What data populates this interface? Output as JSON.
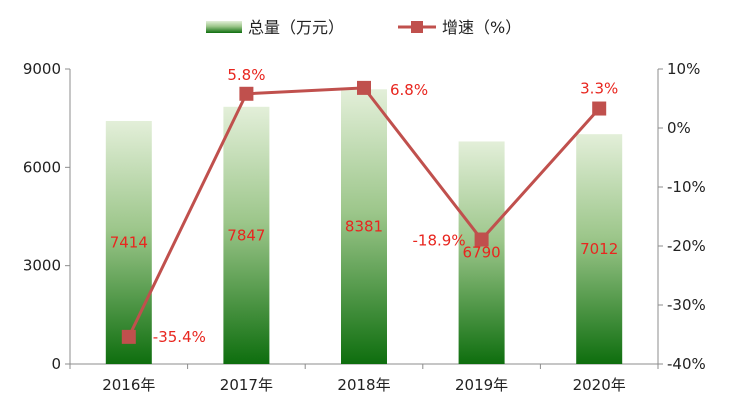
{
  "chart_data": {
    "type": "bar+line",
    "categories": [
      "2016年",
      "2017年",
      "2018年",
      "2019年",
      "2020年"
    ],
    "series": [
      {
        "name": "总量（万元）",
        "type": "bar",
        "axis": "left",
        "values": [
          7414,
          7847,
          8381,
          6790,
          7012
        ],
        "labels": [
          "7414",
          "7847",
          "8381",
          "6790",
          "7012"
        ]
      },
      {
        "name": "增速（%）",
        "type": "line",
        "axis": "right",
        "values": [
          -35.4,
          5.8,
          6.8,
          -18.9,
          3.3
        ],
        "labels": [
          "-35.4%",
          "5.8%",
          "6.8%",
          "-18.9%",
          "3.3%"
        ]
      }
    ],
    "y_left": {
      "min": 0,
      "max": 9000,
      "ticks": [
        "0",
        "3000",
        "6000",
        "9000"
      ],
      "tick_values": [
        0,
        3000,
        6000,
        9000
      ]
    },
    "y_right": {
      "min": -40,
      "max": 10,
      "ticks": [
        "10%",
        "0%",
        "-10%",
        "-20%",
        "-30%",
        "-40%"
      ],
      "tick_values": [
        10,
        0,
        -10,
        -20,
        -30,
        -40
      ]
    },
    "legend_position": "top-center",
    "grid": false,
    "colors": {
      "bar_top": "#e3efd9",
      "bar_bottom": "#0e6e0e",
      "line": "#c0504d",
      "label": "#e8261f",
      "axis": "#8c8c8c"
    }
  }
}
